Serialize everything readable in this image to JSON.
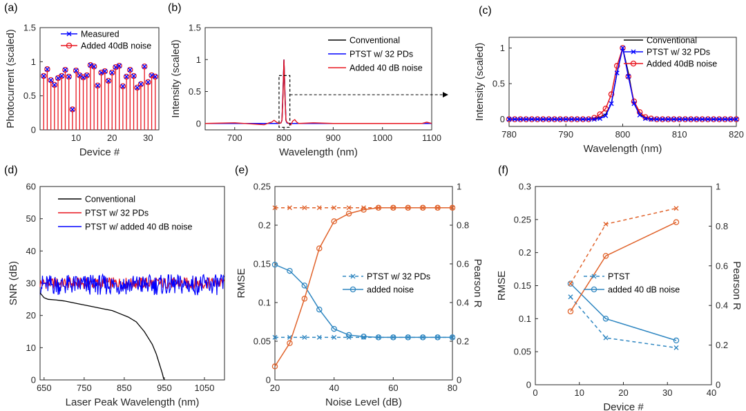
{
  "chart_data": [
    {
      "panel": "(a)",
      "type": "stem",
      "xlabel": "Device #",
      "ylabel": "Photocurrent (scaled)",
      "xlim": [
        0,
        33
      ],
      "ylim": [
        0,
        1.5
      ],
      "xticks": [
        10,
        20,
        30
      ],
      "yticks": [
        0,
        0.5,
        1,
        1.5
      ],
      "ytick_labels": [
        "0",
        "0.5",
        "1",
        "1.5"
      ],
      "legend": "top-right",
      "x": [
        1,
        2,
        3,
        4,
        5,
        6,
        7,
        8,
        9,
        10,
        11,
        12,
        13,
        14,
        15,
        16,
        17,
        18,
        19,
        20,
        21,
        22,
        23,
        24,
        25,
        26,
        27,
        28,
        29,
        30,
        31,
        32
      ],
      "series": [
        {
          "name": "Measured",
          "color": "#0000ff",
          "marker": "x",
          "values": [
            0.79,
            0.89,
            0.73,
            0.66,
            0.76,
            0.79,
            0.88,
            0.78,
            0.3,
            0.87,
            0.8,
            0.77,
            0.8,
            0.95,
            0.93,
            0.65,
            0.84,
            0.86,
            0.72,
            0.84,
            0.92,
            0.94,
            0.64,
            0.78,
            0.88,
            0.79,
            0.62,
            0.67,
            0.93,
            0.7,
            0.8,
            0.78
          ]
        },
        {
          "name": "Added 40dB noise",
          "color": "#e8141d",
          "marker": "o",
          "values": [
            0.79,
            0.89,
            0.73,
            0.66,
            0.76,
            0.79,
            0.88,
            0.78,
            0.3,
            0.87,
            0.8,
            0.77,
            0.8,
            0.95,
            0.93,
            0.65,
            0.84,
            0.86,
            0.72,
            0.84,
            0.92,
            0.94,
            0.64,
            0.78,
            0.88,
            0.79,
            0.62,
            0.67,
            0.93,
            0.7,
            0.8,
            0.78
          ]
        }
      ]
    },
    {
      "panel": "(b)",
      "type": "line",
      "xlabel": "Wavelength (nm)",
      "ylabel": "Intensity (scaled)",
      "xlim": [
        640,
        1100
      ],
      "ylim": [
        -0.1,
        1.5
      ],
      "xticks": [
        700,
        800,
        900,
        1000,
        1100
      ],
      "yticks": [
        0,
        0.5,
        1,
        1.5
      ],
      "ytick_labels": [
        "0",
        "0.5",
        "1",
        "1.5"
      ],
      "legend": "top-right",
      "zoom_box": {
        "x": [
          790,
          812
        ],
        "y": [
          -0.06,
          0.75
        ]
      },
      "series": [
        {
          "name": "Conventional",
          "color": "#000000",
          "x": [
            640,
            760,
            780,
            790,
            794,
            796,
            798,
            800,
            802,
            804,
            806,
            810,
            830,
            900,
            1000,
            1090,
            1095,
            1100
          ],
          "y": [
            0,
            0,
            0,
            0,
            0.01,
            0.05,
            0.45,
            1.0,
            0.45,
            0.05,
            0.01,
            0,
            0,
            0,
            0,
            0,
            0,
            0
          ]
        },
        {
          "name": "PTST w/ 32 PDs",
          "color": "#0000ff",
          "x": [
            640,
            760,
            780,
            790,
            794,
            796,
            798,
            800,
            802,
            804,
            806,
            810,
            830,
            900,
            1000,
            1090,
            1095,
            1100
          ],
          "y": [
            0,
            0,
            0,
            0,
            0.01,
            0.05,
            0.5,
            1.0,
            0.5,
            0.05,
            0.01,
            0,
            0,
            0,
            0,
            0,
            0,
            0
          ]
        },
        {
          "name": "Added 40 dB noise",
          "color": "#e8141d",
          "x": [
            640,
            700,
            760,
            770,
            775,
            780,
            785,
            790,
            794,
            796,
            798,
            800,
            802,
            804,
            806,
            810,
            814,
            818,
            822,
            826,
            830,
            860,
            900,
            950,
            1000,
            1050,
            1080,
            1090,
            1095,
            1100
          ],
          "y": [
            0,
            0.01,
            -0.02,
            0.01,
            0.02,
            0.05,
            0.02,
            0.0,
            0.01,
            0.05,
            0.45,
            1.0,
            0.45,
            0.05,
            0.02,
            0.0,
            -0.02,
            0.04,
            0.06,
            0.02,
            0.0,
            0.01,
            0.0,
            0.0,
            0.0,
            0.0,
            0.0,
            0.02,
            0.01,
            0.0
          ]
        }
      ]
    },
    {
      "panel": "(c)",
      "type": "line",
      "xlabel": "Wavelength (nm)",
      "ylabel": "Intensity (scaled)",
      "xlim": [
        780,
        820
      ],
      "ylim": [
        -0.1,
        1.15
      ],
      "xticks": [
        780,
        790,
        800,
        810,
        820
      ],
      "yticks": [
        0,
        0.5,
        1
      ],
      "ytick_labels": [
        "0",
        "0.5",
        "1"
      ],
      "legend": "top-right",
      "series": [
        {
          "name": "Conventional",
          "color": "#000000",
          "x": [
            780,
            782,
            784,
            786,
            788,
            790,
            792,
            794,
            795,
            796,
            797,
            798,
            799,
            800,
            801,
            802,
            803,
            804,
            805,
            806,
            808,
            810,
            812,
            814,
            816,
            818,
            820
          ],
          "y": [
            0,
            0,
            0,
            0,
            0,
            0,
            0,
            0,
            0.01,
            0.03,
            0.07,
            0.22,
            0.65,
            1.0,
            0.65,
            0.22,
            0.07,
            0.02,
            0.01,
            0,
            0,
            0,
            0,
            0,
            0,
            0,
            0
          ]
        },
        {
          "name": "PTST w/ 32 PDs",
          "color": "#0000ff",
          "marker": "x",
          "x": [
            780,
            781,
            782,
            783,
            784,
            785,
            786,
            787,
            788,
            789,
            790,
            791,
            792,
            793,
            794,
            795,
            796,
            797,
            798,
            799,
            800,
            801,
            802,
            803,
            804,
            805,
            806,
            807,
            808,
            809,
            810,
            811,
            812,
            813,
            814,
            815,
            816,
            817,
            818,
            819,
            820
          ],
          "y": [
            0,
            0,
            0,
            0,
            0,
            0,
            0,
            0,
            0,
            0,
            0,
            0,
            0,
            0,
            0,
            0,
            0.01,
            0.05,
            0.22,
            0.65,
            1.0,
            0.6,
            0.22,
            0.06,
            0.01,
            0,
            0,
            0,
            0,
            0,
            0,
            0,
            0,
            0,
            0,
            0,
            0,
            0,
            0,
            0,
            0
          ]
        },
        {
          "name": "Added 40dB noise",
          "color": "#e8141d",
          "marker": "o",
          "x": [
            780,
            781,
            782,
            783,
            784,
            785,
            786,
            787,
            788,
            789,
            790,
            791,
            792,
            793,
            794,
            795,
            796,
            797,
            798,
            799,
            800,
            801,
            802,
            803,
            804,
            805,
            806,
            807,
            808,
            809,
            810,
            811,
            812,
            813,
            814,
            815,
            816,
            817,
            818,
            819,
            820
          ],
          "y": [
            0,
            0,
            0,
            0,
            0,
            0,
            0,
            0,
            0,
            0,
            0,
            0,
            0,
            0,
            0,
            0.02,
            0.07,
            0.15,
            0.35,
            0.75,
            1.0,
            0.6,
            0.25,
            0.1,
            0.03,
            0.01,
            0,
            0,
            0,
            0,
            0,
            0,
            0,
            0,
            0,
            0,
            0,
            0,
            0,
            0,
            0
          ]
        }
      ]
    },
    {
      "panel": "(d)",
      "type": "line",
      "xlabel": "Laser Peak Wavelength (nm)",
      "ylabel": "SNR (dB)",
      "xlim": [
        640,
        1100
      ],
      "ylim": [
        0,
        60
      ],
      "xticks": [
        650,
        750,
        850,
        950,
        1050
      ],
      "yticks": [
        0,
        10,
        20,
        30,
        40,
        50,
        60
      ],
      "legend": "top-left",
      "series": [
        {
          "name": "Conventional",
          "color": "#000000",
          "x": [
            640,
            650,
            660,
            680,
            700,
            720,
            740,
            760,
            780,
            800,
            820,
            840,
            860,
            880,
            900,
            910,
            920,
            930,
            935,
            940,
            945,
            948,
            950
          ],
          "y": [
            27,
            25.5,
            25,
            24.8,
            24.5,
            24,
            23.5,
            23,
            22.5,
            22,
            21.5,
            20.5,
            19.5,
            18,
            15,
            13,
            11,
            8,
            6,
            4,
            2,
            0.5,
            0
          ]
        },
        {
          "name": "PTST w/ 32 PDs",
          "color": "#e8141d",
          "mean": 30,
          "amplitude": 1.8
        },
        {
          "name": "PTST w/ added 40 dB noise",
          "color": "#0000ff",
          "mean": 29.5,
          "amplitude": 3.2
        }
      ]
    },
    {
      "panel": "(e)",
      "type": "line-dual-axis",
      "xlabel": "Noise Level (dB)",
      "ylabel": "RMSE",
      "ylabel_right": "Pearson R",
      "xlim": [
        20,
        80
      ],
      "ylim": [
        0,
        0.25
      ],
      "ylim_right": [
        0,
        1
      ],
      "xticks": [
        20,
        40,
        60,
        80
      ],
      "yticks": [
        0,
        0.05,
        0.1,
        0.15,
        0.2,
        0.25
      ],
      "ytick_labels": [
        "0",
        "0.05",
        "0.1",
        "0.15",
        "0.2",
        "0.25"
      ],
      "yticks_right": [
        0,
        0.2,
        0.4,
        0.6,
        0.8,
        1
      ],
      "ytick_labels_right": [
        "0",
        "0.2",
        "0.4",
        "0.6",
        "0.8",
        "1"
      ],
      "legend": "center-right",
      "x": [
        20,
        25,
        30,
        35,
        40,
        45,
        50,
        55,
        60,
        65,
        70,
        75,
        80
      ],
      "series": [
        {
          "name": "PTST w/ 32 PDs",
          "axis": "left",
          "color": "#2e86c1",
          "dash": true,
          "marker": "x",
          "values": [
            0.055,
            0.055,
            0.055,
            0.055,
            0.055,
            0.055,
            0.055,
            0.055,
            0.055,
            0.055,
            0.055,
            0.055,
            0.055
          ]
        },
        {
          "name": "added noise",
          "axis": "left",
          "color": "#2e86c1",
          "dash": false,
          "marker": "o",
          "values": [
            0.149,
            0.141,
            0.122,
            0.091,
            0.066,
            0.058,
            0.056,
            0.055,
            0.055,
            0.055,
            0.055,
            0.055,
            0.055
          ]
        },
        {
          "name": "",
          "axis": "right",
          "color": "#e0622a",
          "dash": true,
          "marker": "x",
          "values": [
            0.89,
            0.89,
            0.89,
            0.89,
            0.89,
            0.89,
            0.89,
            0.89,
            0.89,
            0.89,
            0.89,
            0.89,
            0.89
          ]
        },
        {
          "name": "",
          "axis": "right",
          "color": "#e0622a",
          "dash": false,
          "marker": "o",
          "values": [
            0.07,
            0.19,
            0.42,
            0.68,
            0.82,
            0.86,
            0.88,
            0.89,
            0.89,
            0.89,
            0.89,
            0.89,
            0.89
          ]
        }
      ]
    },
    {
      "panel": "(f)",
      "type": "line-dual-axis",
      "xlabel": "Device #",
      "ylabel": "RMSE",
      "ylabel_right": "Pearson R",
      "xlim": [
        0,
        40
      ],
      "ylim": [
        0,
        0.3
      ],
      "ylim_right": [
        0,
        1
      ],
      "xticks": [
        0,
        10,
        20,
        30,
        40
      ],
      "yticks": [
        0,
        0.05,
        0.1,
        0.15,
        0.2,
        0.25,
        0.3
      ],
      "ytick_labels": [
        "0",
        "0.05",
        "0.1",
        "0.15",
        "0.2",
        "0.25",
        "0.3"
      ],
      "yticks_right": [
        0,
        0.2,
        0.4,
        0.6,
        0.8,
        1
      ],
      "ytick_labels_right": [
        "0",
        "0.2",
        "0.4",
        "0.6",
        "0.8",
        "1"
      ],
      "legend": "center-right",
      "x": [
        8,
        16,
        32
      ],
      "series": [
        {
          "name": "PTST",
          "axis": "left",
          "color": "#2e86c1",
          "dash": true,
          "marker": "x",
          "values": [
            0.133,
            0.071,
            0.056
          ]
        },
        {
          "name": "added 40 dB noise",
          "axis": "left",
          "color": "#2e86c1",
          "dash": false,
          "marker": "o",
          "values": [
            0.153,
            0.1,
            0.067
          ]
        },
        {
          "name": "",
          "axis": "right",
          "color": "#e0622a",
          "dash": true,
          "marker": "x",
          "values": [
            0.51,
            0.81,
            0.89
          ]
        },
        {
          "name": "",
          "axis": "right",
          "color": "#e0622a",
          "dash": false,
          "marker": "o",
          "values": [
            0.37,
            0.65,
            0.82
          ]
        }
      ]
    }
  ]
}
